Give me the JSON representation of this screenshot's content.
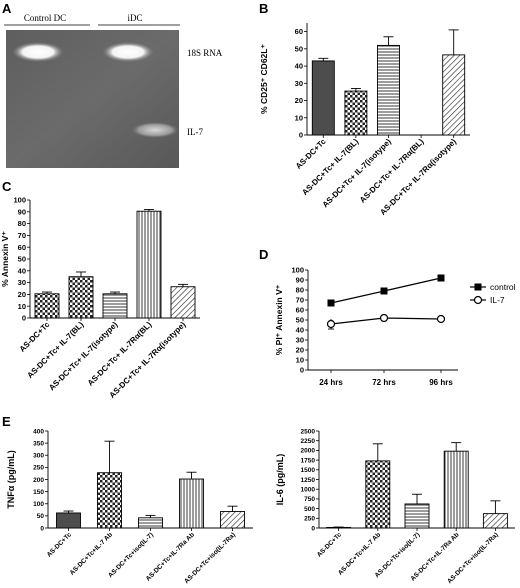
{
  "panels": {
    "A": {
      "letter": "A",
      "lane_labels": [
        "Control DC",
        "iDC"
      ],
      "band_labels": [
        "18S RNA",
        "IL-7"
      ]
    },
    "B": {
      "letter": "B"
    },
    "C": {
      "letter": "C"
    },
    "D": {
      "letter": "D"
    },
    "E": {
      "letter": "E"
    }
  },
  "chart_data": [
    {
      "id": "B",
      "type": "bar",
      "ylabel": "% CD25⁺ CD62L⁺",
      "ylim": [
        0,
        65
      ],
      "yticks": [
        0,
        10,
        20,
        30,
        40,
        50,
        60
      ],
      "categories": [
        "AS-DC+Tc",
        "AS-DC+Tc+ IL-7(BL)",
        "AS-DC+Tc+ IL-7(isotype)",
        "AS-DC+Tc+ IL-7Rα(BL)",
        "AS-DC+Tc+ IL-7Rα(isotype)"
      ],
      "values": [
        43,
        25.5,
        52,
        0,
        46.5
      ],
      "errors": [
        1.5,
        1.5,
        5,
        0,
        14.5
      ],
      "patterns": [
        "solid",
        "check",
        "hline",
        "none",
        "diag"
      ]
    },
    {
      "id": "C",
      "type": "bar",
      "ylabel": "% Annexin V⁺",
      "ylim": [
        0,
        100
      ],
      "yticks": [
        0,
        10,
        20,
        30,
        40,
        50,
        60,
        70,
        80,
        90,
        100
      ],
      "categories": [
        "AS-DC+Tc",
        "AS-DC+Tc+ IL-7(BL)",
        "AS-DC+Tc+ IL-7(isotype)",
        "AS-DC+Tc+ IL-7Rα(BL)",
        "AS-DC+Tc+ IL-7Rα(isotype)"
      ],
      "values": [
        20.5,
        35,
        20.5,
        90.5,
        26.5
      ],
      "errors": [
        1.5,
        4,
        1.5,
        1.5,
        2
      ],
      "patterns": [
        "check",
        "check",
        "hline",
        "vline",
        "diag"
      ]
    },
    {
      "id": "D",
      "type": "line",
      "ylabel": "% PI⁺ Annexin V⁺",
      "ylim": [
        0,
        100
      ],
      "yticks": [
        0,
        10,
        20,
        30,
        40,
        50,
        60,
        70,
        80,
        90,
        100
      ],
      "categories": [
        "24 hrs",
        "72 hrs",
        "96 hrs"
      ],
      "series": [
        {
          "name": "control",
          "values": [
            67,
            79,
            92
          ],
          "marker": "square",
          "errors": [
            0,
            0,
            0
          ]
        },
        {
          "name": "IL-7",
          "values": [
            46,
            52,
            51
          ],
          "marker": "circle",
          "errors": [
            5,
            0,
            0
          ]
        }
      ],
      "legend": "right"
    },
    {
      "id": "E1",
      "type": "bar",
      "ylabel": "TNFα (pg/mL)",
      "ylim": [
        0,
        400
      ],
      "yticks": [
        0,
        50,
        100,
        150,
        200,
        250,
        300,
        350,
        400
      ],
      "categories": [
        "AS-DC+Tc",
        "AS-DC+Tc+IL-7 Ab",
        "AS-DC+Tc+iso(IL-7)",
        "AS-DC+Tc+IL-7Ra Ab",
        "AS-DC+Tc+iso(IL-7Ra)"
      ],
      "values": [
        62,
        228,
        42,
        202,
        68
      ],
      "errors": [
        8,
        130,
        10,
        28,
        22
      ],
      "patterns": [
        "solid",
        "check",
        "hline",
        "vline",
        "diag"
      ]
    },
    {
      "id": "E2",
      "type": "bar",
      "ylabel": "IL-6 (pg/mL)",
      "ylim": [
        0,
        2500
      ],
      "yticks": [
        0,
        250,
        500,
        750,
        1000,
        1250,
        1500,
        1750,
        2000,
        2250,
        2500
      ],
      "categories": [
        "AS-DC+Tc",
        "AS-DC+Tc+IL-7 Ab",
        "AS-DC+Tc+iso(IL-7)",
        "AS-DC+Tc+IL-7Ra Ab",
        "AS-DC+Tc+iso(IL-7Ra)"
      ],
      "values": [
        15,
        1730,
        620,
        1980,
        370
      ],
      "errors": [
        10,
        440,
        250,
        220,
        330
      ],
      "patterns": [
        "solid",
        "check",
        "hline",
        "vline",
        "diag"
      ]
    }
  ]
}
